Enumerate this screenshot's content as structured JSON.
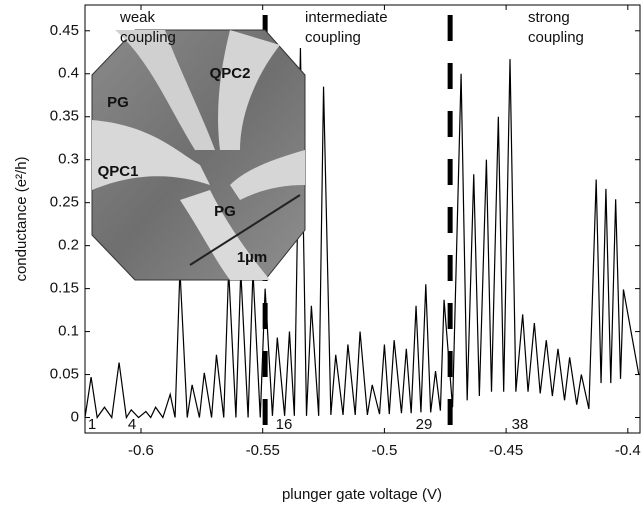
{
  "chart_data": {
    "type": "line",
    "x_label": "plunger gate voltage (V)",
    "y_label": "conductance (e²/h)",
    "color": "#000000",
    "xlim": [
      -0.623,
      -0.395
    ],
    "ylim": [
      -0.018,
      0.48
    ],
    "xticks": [
      -0.6,
      -0.55,
      -0.5,
      -0.45,
      -0.4
    ],
    "yticks": [
      0,
      0.05,
      0.1,
      0.15,
      0.2,
      0.25,
      0.3,
      0.35,
      0.4,
      0.45
    ],
    "regions": [
      "weak coupling",
      "intermediate coupling",
      "strong coupling"
    ],
    "boundaries": [
      -0.549,
      -0.473
    ],
    "peak_labels": [
      "1",
      "4",
      "16",
      "29",
      "38"
    ],
    "inset_labels": [
      "PG",
      "QPC2",
      "QPC1",
      "PG",
      "1µm"
    ],
    "x": [
      -0.623,
      -0.6205,
      -0.618,
      -0.615,
      -0.612,
      -0.609,
      -0.606,
      -0.604,
      -0.601,
      -0.598,
      -0.596,
      -0.594,
      -0.591,
      -0.588,
      -0.586,
      -0.584,
      -0.581,
      -0.579,
      -0.576,
      -0.574,
      -0.571,
      -0.569,
      -0.566,
      -0.564,
      -0.561,
      -0.559,
      -0.556,
      -0.554,
      -0.551,
      -0.549,
      -0.546,
      -0.544,
      -0.541,
      -0.539,
      -0.537,
      -0.5345,
      -0.532,
      -0.53,
      -0.527,
      -0.525,
      -0.522,
      -0.52,
      -0.517,
      -0.515,
      -0.512,
      -0.51,
      -0.507,
      -0.505,
      -0.502,
      -0.5,
      -0.498,
      -0.496,
      -0.493,
      -0.491,
      -0.489,
      -0.487,
      -0.485,
      -0.483,
      -0.481,
      -0.479,
      -0.477,
      -0.4755,
      -0.472,
      -0.4685,
      -0.466,
      -0.4633,
      -0.461,
      -0.4581,
      -0.456,
      -0.4532,
      -0.451,
      -0.4484,
      -0.446,
      -0.4432,
      -0.441,
      -0.4384,
      -0.436,
      -0.4335,
      -0.431,
      -0.4287,
      -0.426,
      -0.4239,
      -0.421,
      -0.4191,
      -0.416,
      -0.413,
      -0.411,
      -0.409,
      -0.407,
      -0.405,
      -0.403,
      -0.4018,
      -0.3955
    ],
    "values": [
      0,
      0.047,
      0,
      0.012,
      0,
      0.064,
      0,
      0.009,
      0,
      0.007,
      0,
      0.012,
      0,
      0.027,
      0,
      0.172,
      0,
      0.038,
      0,
      0.052,
      0,
      0.073,
      0,
      0.172,
      0,
      0.17,
      0,
      0.17,
      0,
      0.15,
      0.002,
      0.093,
      0.002,
      0.1,
      0.002,
      0.43,
      0.002,
      0.13,
      0.002,
      0.385,
      0.003,
      0.073,
      0.003,
      0.085,
      0.003,
      0.1,
      0.003,
      0.038,
      0.004,
      0.085,
      0.004,
      0.09,
      0.005,
      0.08,
      0.005,
      0.13,
      0.006,
      0.155,
      0.006,
      0.054,
      0.008,
      0.137,
      0.012,
      0.4,
      0.02,
      0.283,
      0.025,
      0.3,
      0.03,
      0.35,
      0.03,
      0.417,
      0.03,
      0.12,
      0.03,
      0.11,
      0.028,
      0.09,
      0.025,
      0.08,
      0.02,
      0.07,
      0.015,
      0.05,
      0.01,
      0.277,
      0.04,
      0.266,
      0.04,
      0.254,
      0.045,
      0.149,
      0.05
    ]
  }
}
